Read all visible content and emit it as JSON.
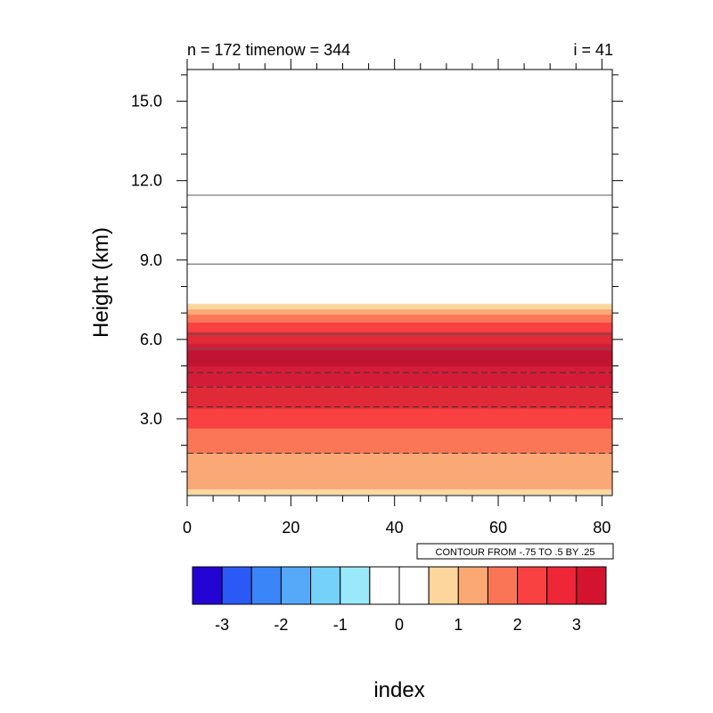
{
  "chart_data": {
    "type": "heatmap",
    "title_left": "n = 172 timenow = 344",
    "title_right": "i = 41",
    "ylabel": "Height (km)",
    "xlabel": "index",
    "xlim": [
      0,
      82
    ],
    "ylim": [
      0.1,
      16.2
    ],
    "x_ticks": [
      0,
      20,
      40,
      60,
      80
    ],
    "x_tick_labels": [
      "0",
      "20",
      "40",
      "60",
      "80"
    ],
    "y_ticks": [
      3.0,
      6.0,
      9.0,
      12.0,
      15.0
    ],
    "y_tick_labels": [
      "3.0",
      "6.0",
      "9.0",
      "12.0",
      "15.0"
    ],
    "bands": [
      {
        "y0": 0.15,
        "y1": 0.35,
        "level": 0
      },
      {
        "y0": 0.35,
        "y1": 1.7,
        "level": 1
      },
      {
        "y0": 1.7,
        "y1": 2.65,
        "level": 2
      },
      {
        "y0": 2.65,
        "y1": 3.4,
        "level": 3
      },
      {
        "y0": 3.4,
        "y1": 4.25,
        "level": 4
      },
      {
        "y0": 4.25,
        "y1": 5.0,
        "level": 5
      },
      {
        "y0": 5.0,
        "y1": 5.6,
        "level": 6
      },
      {
        "y0": 5.6,
        "y1": 5.85,
        "level": 5
      },
      {
        "y0": 5.85,
        "y1": 6.3,
        "level": 4
      },
      {
        "y0": 6.3,
        "y1": 6.65,
        "level": 3
      },
      {
        "y0": 6.65,
        "y1": 6.95,
        "level": 2
      },
      {
        "y0": 6.95,
        "y1": 7.15,
        "level": 1
      },
      {
        "y0": 7.15,
        "y1": 7.35,
        "level": 0
      }
    ],
    "band_colors": [
      "#fcd8a0",
      "#fba877",
      "#fa7656",
      "#fa4141",
      "#e02a37",
      "#d41c38",
      "#c01432"
    ],
    "contour_lines": [
      {
        "y": 1.7,
        "style": "dashed"
      },
      {
        "y": 3.45,
        "style": "dashed"
      },
      {
        "y": 4.2,
        "style": "dashed"
      },
      {
        "y": 4.75,
        "style": "dashed"
      },
      {
        "y": 5.65,
        "style": "solid"
      },
      {
        "y": 6.2,
        "style": "solid"
      },
      {
        "y": 8.85,
        "style": "solid"
      },
      {
        "y": 11.45,
        "style": "solid"
      }
    ],
    "contour_info": "CONTOUR FROM -.75 TO .5 BY .25",
    "colorbar": {
      "colors": [
        "#2304d4",
        "#2a59f6",
        "#3a85f7",
        "#56a8f9",
        "#74d1f9",
        "#9ae9fb",
        "#ffffff",
        "#ffffff",
        "#fdd69d",
        "#fba875",
        "#fa7555",
        "#fa4141",
        "#ef2538",
        "#d4142f"
      ],
      "labels": [
        "-3",
        "-2",
        "-1",
        "0",
        "1",
        "2",
        "3"
      ]
    }
  }
}
